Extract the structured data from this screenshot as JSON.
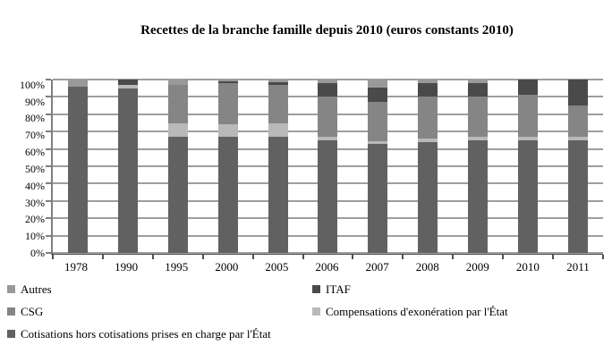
{
  "title": "Recettes de la branche famille depuis 2010 (euros constants 2010)",
  "chart_data": {
    "type": "bar",
    "stacked": true,
    "stacked_to_100_percent": true,
    "title": "Recettes de la branche famille depuis 2010 (euros constants 2010)",
    "categories": [
      "1978",
      "1990",
      "1995",
      "2000",
      "2005",
      "2006",
      "2007",
      "2008",
      "2009",
      "2010",
      "2011"
    ],
    "series": [
      {
        "name": "Cotisations hors cotisations prises en charge par l'État",
        "color": "#616161",
        "values": [
          96,
          95,
          67,
          67,
          67,
          65,
          63,
          64,
          65,
          65,
          65
        ]
      },
      {
        "name": "Compensations d'exonération par l'État",
        "color": "#b9b9b9",
        "values": [
          0,
          2,
          8,
          7,
          7.5,
          2,
          1.5,
          2,
          2,
          2,
          2
        ]
      },
      {
        "name": "CSG",
        "color": "#858585",
        "values": [
          0,
          0,
          22,
          24,
          22.5,
          23,
          22.5,
          24,
          23,
          24,
          18
        ]
      },
      {
        "name": "ITAF",
        "color": "#4a4a4a",
        "values": [
          0,
          3,
          0,
          1,
          1.5,
          8,
          8.5,
          8,
          8,
          9,
          15
        ]
      },
      {
        "name": "Autres",
        "color": "#999999",
        "values": [
          4,
          0,
          3,
          1,
          1.5,
          2,
          4.5,
          2,
          2,
          0,
          0
        ]
      }
    ],
    "xlabel": "",
    "ylabel": "",
    "ylim": [
      0,
      100
    ],
    "ytick_step": 10,
    "yticks": [
      "0%",
      "10%",
      "20%",
      "30%",
      "40%",
      "50%",
      "60%",
      "70%",
      "80%",
      "90%",
      "100%"
    ],
    "grid": true,
    "legend_position": "bottom"
  },
  "legend": {
    "items": [
      {
        "label": "Autres",
        "color": "#999999"
      },
      {
        "label": "ITAF",
        "color": "#4a4a4a"
      },
      {
        "label": "CSG",
        "color": "#858585"
      },
      {
        "label": "Compensations d'exonération par l'État",
        "color": "#b9b9b9"
      },
      {
        "label": "Cotisations hors cotisations prises en charge par l'État",
        "color": "#616161"
      }
    ]
  }
}
